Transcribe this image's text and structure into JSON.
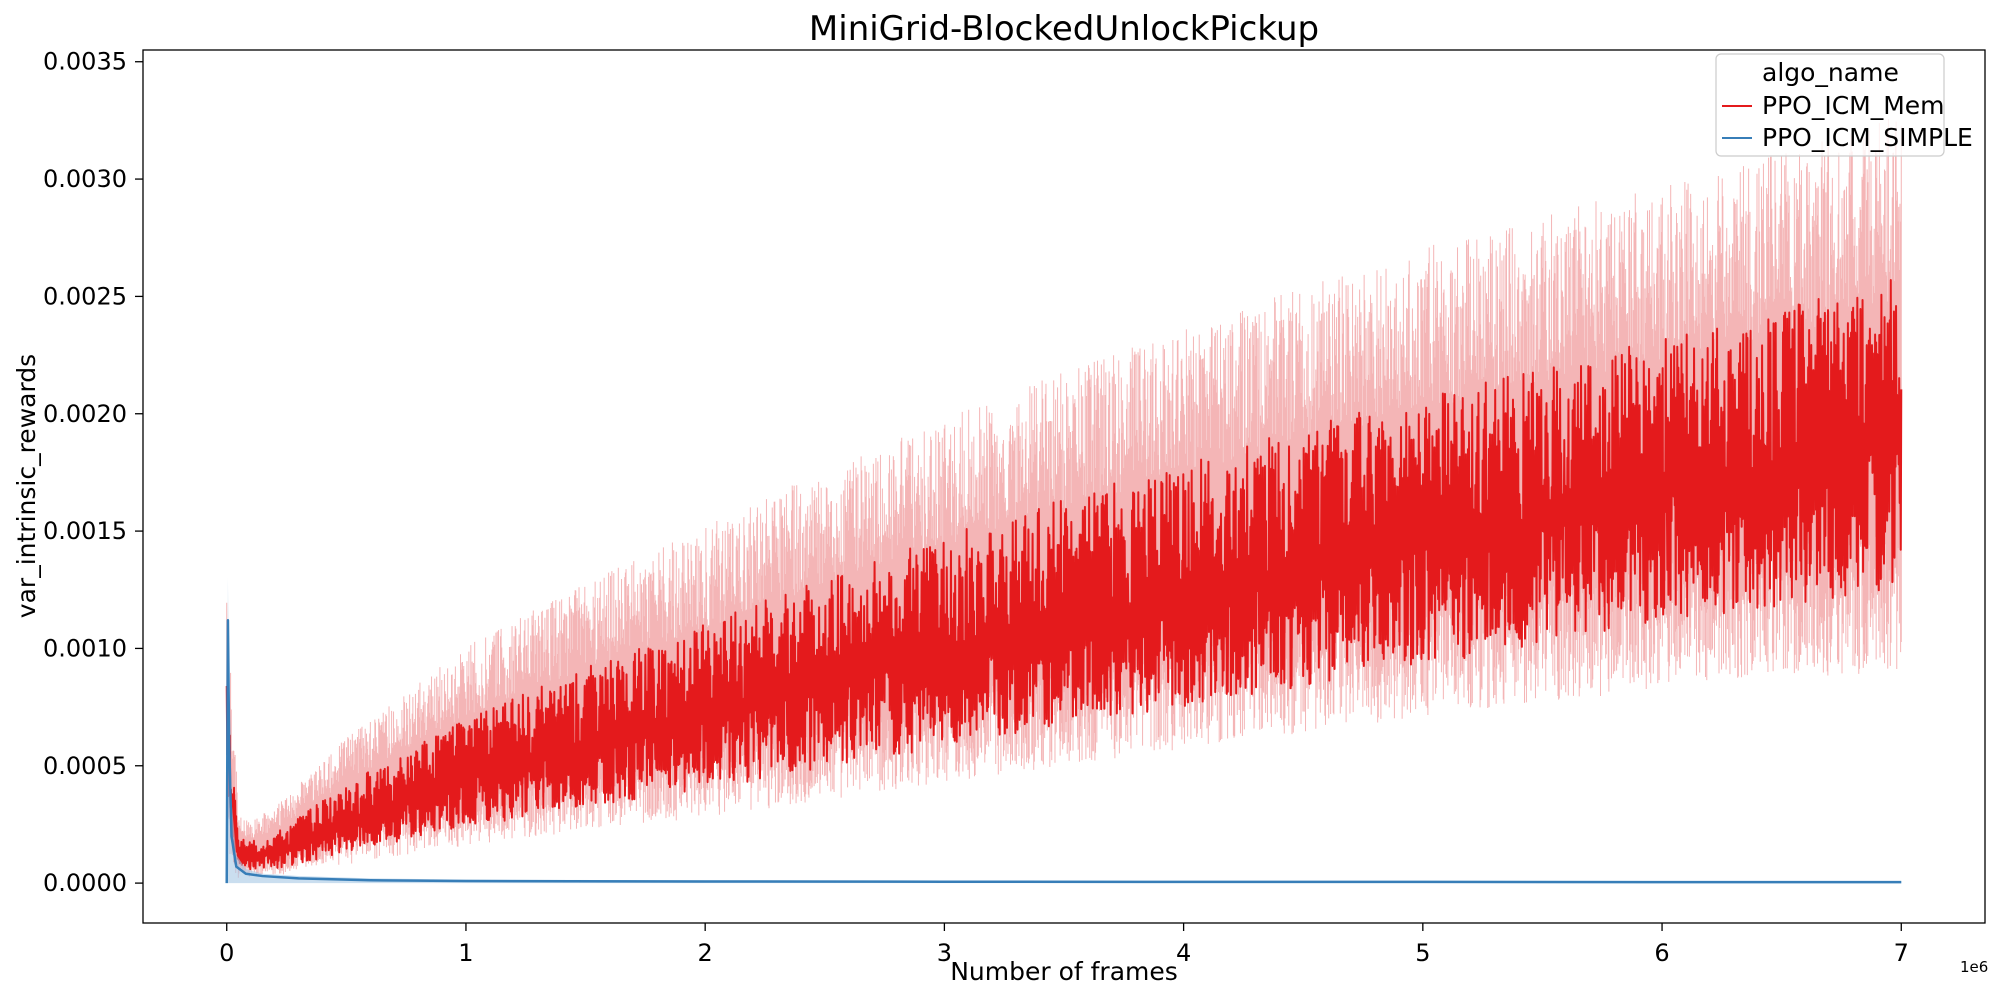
{
  "chart_data": {
    "type": "line",
    "title": "MiniGrid-BlockedUnlockPickup",
    "xlabel": "Number of frames",
    "ylabel": "var_intrinsic_rewards",
    "x_offset_label": "1e6",
    "xlim": [
      -0.35,
      7.35
    ],
    "ylim": [
      -0.00017,
      0.00355
    ],
    "xticks": [
      0,
      1,
      2,
      3,
      4,
      5,
      6,
      7
    ],
    "xtick_labels": [
      "0",
      "1",
      "2",
      "3",
      "4",
      "5",
      "6",
      "7"
    ],
    "yticks": [
      0.0,
      0.0005,
      0.001,
      0.0015,
      0.002,
      0.0025,
      0.003,
      0.0035
    ],
    "ytick_labels": [
      "0.0000",
      "0.0005",
      "0.0010",
      "0.0015",
      "0.0020",
      "0.0025",
      "0.0030",
      "0.0035"
    ],
    "grid": false,
    "legend": {
      "title": "algo_name",
      "placement": "top-right"
    },
    "series": [
      {
        "name": "PPO_ICM_Mem",
        "color": "#e41a1c",
        "x": [
          0,
          0.02,
          0.05,
          0.1,
          0.2,
          0.5,
          1.0,
          1.5,
          2.0,
          2.5,
          3.0,
          3.5,
          4.0,
          4.5,
          5.0,
          5.5,
          6.0,
          6.5,
          7.0
        ],
        "mean": [
          0.00075,
          0.0004,
          0.00012,
          0.00011,
          0.00013,
          0.00027,
          0.00047,
          0.00064,
          0.00078,
          0.00092,
          0.00105,
          0.00117,
          0.00128,
          0.0014,
          0.00151,
          0.00162,
          0.00172,
          0.00182,
          0.0019
        ],
        "low": [
          0.0004,
          0.00012,
          5e-05,
          5e-05,
          6e-05,
          0.00013,
          0.00024,
          0.00032,
          0.0004,
          0.00049,
          0.00058,
          0.00067,
          0.00075,
          0.00084,
          0.00093,
          0.00101,
          0.0011,
          0.00118,
          0.00125
        ],
        "high": [
          0.00095,
          0.00062,
          0.0002,
          0.00018,
          0.00021,
          0.00042,
          0.00071,
          0.00092,
          0.00111,
          0.0013,
          0.00148,
          0.00164,
          0.00179,
          0.00194,
          0.00208,
          0.0022,
          0.00232,
          0.00244,
          0.00262
        ],
        "band_low": [
          0.00025,
          5e-05,
          2e-05,
          2e-05,
          3e-05,
          8e-05,
          0.00016,
          0.00022,
          0.00028,
          0.00035,
          0.00043,
          0.0005,
          0.00057,
          0.00064,
          0.00071,
          0.00077,
          0.00082,
          0.00087,
          0.0009
        ],
        "band_high": [
          0.0012,
          0.00085,
          0.0003,
          0.00027,
          0.00032,
          0.00062,
          0.00101,
          0.00128,
          0.00152,
          0.00176,
          0.00198,
          0.00218,
          0.00236,
          0.00254,
          0.00271,
          0.00285,
          0.00298,
          0.00312,
          0.0033
        ]
      },
      {
        "name": "PPO_ICM_SIMPLE",
        "color": "#377eb8",
        "x": [
          0,
          0.005,
          0.01,
          0.02,
          0.04,
          0.08,
          0.15,
          0.3,
          0.6,
          1.0,
          2.0,
          3.0,
          4.0,
          5.0,
          6.0,
          7.0
        ],
        "mean": [
          0.0,
          0.00112,
          0.0006,
          0.0002,
          7e-05,
          4e-05,
          3e-05,
          2e-05,
          1.2e-05,
          9e-06,
          7e-06,
          6e-06,
          5e-06,
          5e-06,
          4e-06,
          4e-06
        ],
        "band_high": [
          0.0,
          0.0013,
          0.00082,
          0.00035,
          0.00012,
          6e-05,
          4e-05,
          3e-05,
          2e-05,
          1.5e-05,
          1.2e-05,
          1e-05,
          9e-06,
          8e-06,
          7e-06,
          7e-06
        ]
      }
    ]
  }
}
